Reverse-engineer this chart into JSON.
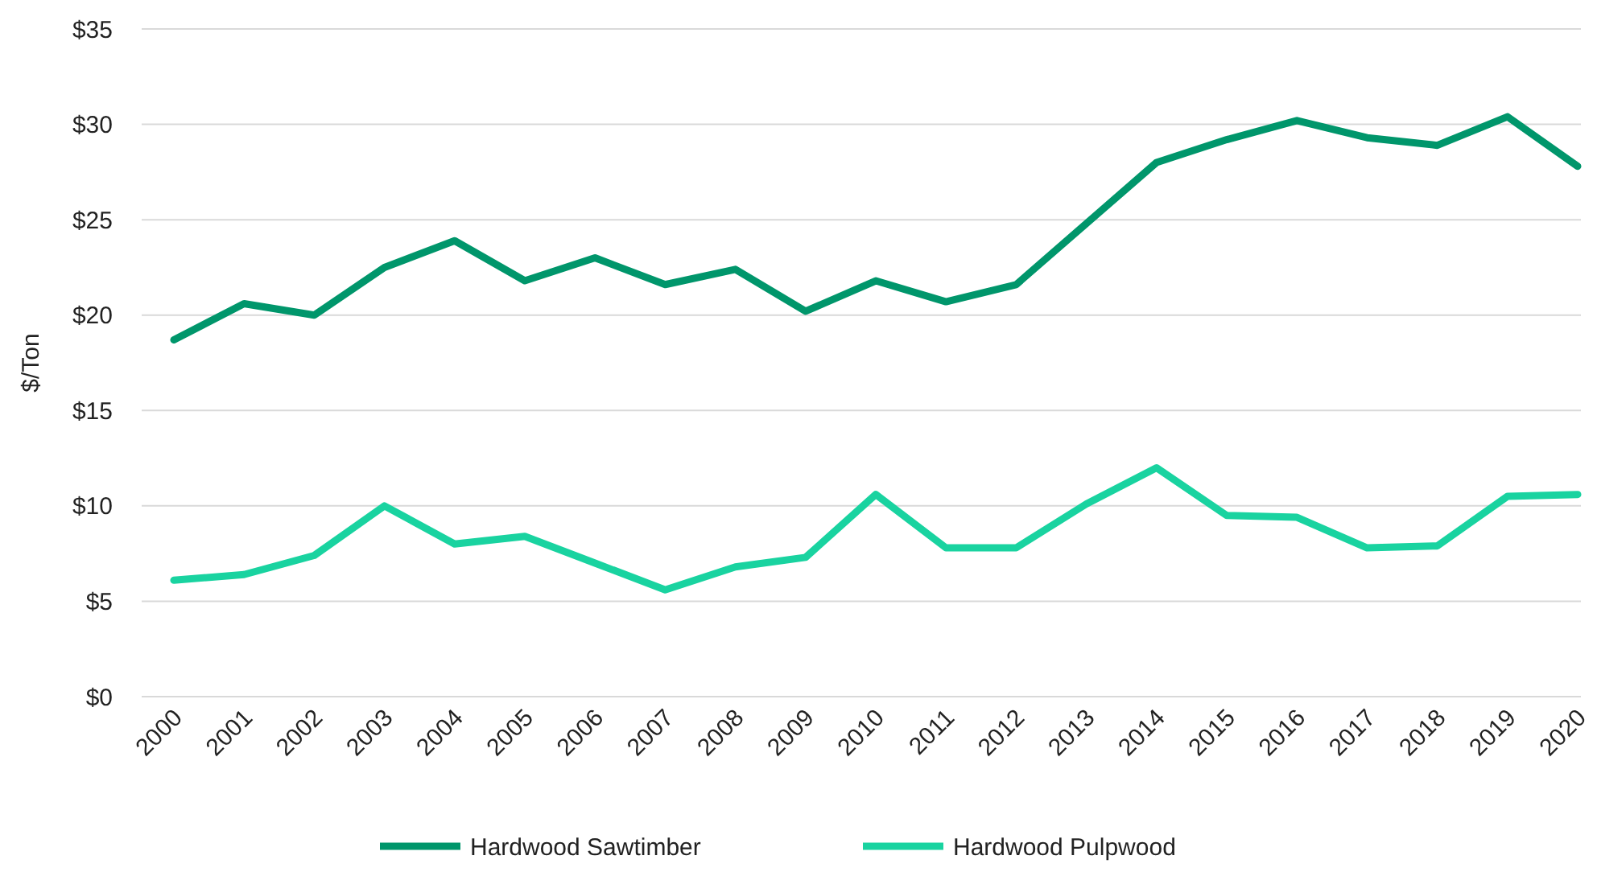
{
  "chart_data": {
    "type": "line",
    "ylabel": "$/Ton",
    "categories": [
      "2000",
      "2001",
      "2002",
      "2003",
      "2004",
      "2005",
      "2006",
      "2007",
      "2008",
      "2009",
      "2010",
      "2011",
      "2012",
      "2013",
      "2014",
      "2015",
      "2016",
      "2017",
      "2018",
      "2019",
      "2020"
    ],
    "series": [
      {
        "name": "Hardwood Sawtimber",
        "color": "#00966b",
        "values": [
          18.7,
          20.6,
          20.0,
          22.5,
          23.9,
          21.8,
          23.0,
          21.6,
          22.4,
          20.2,
          21.8,
          20.7,
          21.6,
          24.8,
          28.0,
          29.2,
          30.2,
          29.3,
          28.9,
          30.4,
          27.8
        ]
      },
      {
        "name": "Hardwood Pulpwood",
        "color": "#19d3a0",
        "values": [
          6.1,
          6.4,
          7.4,
          10.0,
          8.0,
          8.4,
          7.0,
          5.6,
          6.8,
          7.3,
          10.6,
          7.8,
          7.8,
          10.1,
          12.0,
          9.5,
          9.4,
          7.8,
          7.9,
          10.5,
          10.6
        ]
      }
    ],
    "ylim": [
      0,
      35
    ],
    "yticks": [
      {
        "value": 0,
        "label": "$0"
      },
      {
        "value": 5,
        "label": "$5"
      },
      {
        "value": 10,
        "label": "$10"
      },
      {
        "value": 15,
        "label": "$15"
      },
      {
        "value": 20,
        "label": "$20"
      },
      {
        "value": 25,
        "label": "$25"
      },
      {
        "value": 30,
        "label": "$30"
      },
      {
        "value": 35,
        "label": "$35"
      }
    ],
    "grid": "y",
    "legend": "bottom",
    "line_style": "solid",
    "marker": "none"
  }
}
